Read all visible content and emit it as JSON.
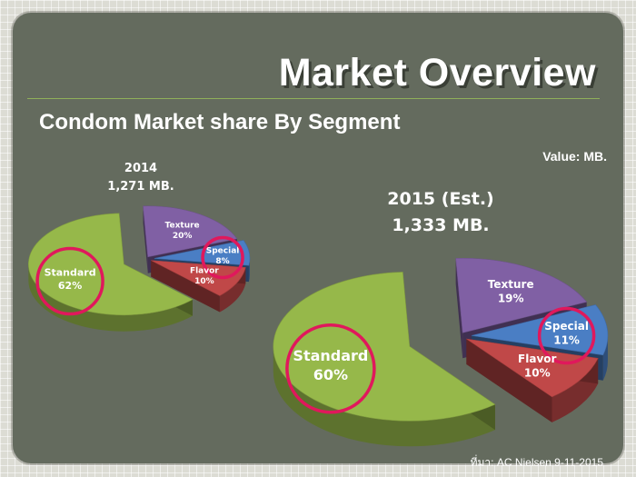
{
  "title": "Market Overview",
  "subtitle": "Condom Market share By Segment",
  "unit_note": "Value: MB.",
  "source": "ที่มา: AC Nielsen 9-11-2015",
  "colors": {
    "Standard": "#96b84a",
    "Texture": "#8060a4",
    "Special": "#4a7ec4",
    "Flavor": "#c04848",
    "highlight_circle": "#e0185c"
  },
  "chart_data": [
    {
      "type": "pie",
      "year_label": "2014",
      "total_label": "1,271 MB.",
      "slices": [
        {
          "label": "Standard",
          "value": 62,
          "value_label": "62%",
          "highlighted": true
        },
        {
          "label": "Texture",
          "value": 20,
          "value_label": "20%",
          "highlighted": false
        },
        {
          "label": "Special",
          "value": 8,
          "value_label": "8%",
          "highlighted": true
        },
        {
          "label": "Flavor",
          "value": 10,
          "value_label": "10%",
          "highlighted": false
        }
      ]
    },
    {
      "type": "pie",
      "year_label": "2015 (Est.)",
      "total_label": "1,333 MB.",
      "slices": [
        {
          "label": "Standard",
          "value": 60,
          "value_label": "60%",
          "highlighted": true
        },
        {
          "label": "Texture",
          "value": 19,
          "value_label": "19%",
          "highlighted": false
        },
        {
          "label": "Special",
          "value": 11,
          "value_label": "11%",
          "highlighted": true
        },
        {
          "label": "Flavor",
          "value": 10,
          "value_label": "10%",
          "highlighted": false
        }
      ]
    }
  ]
}
